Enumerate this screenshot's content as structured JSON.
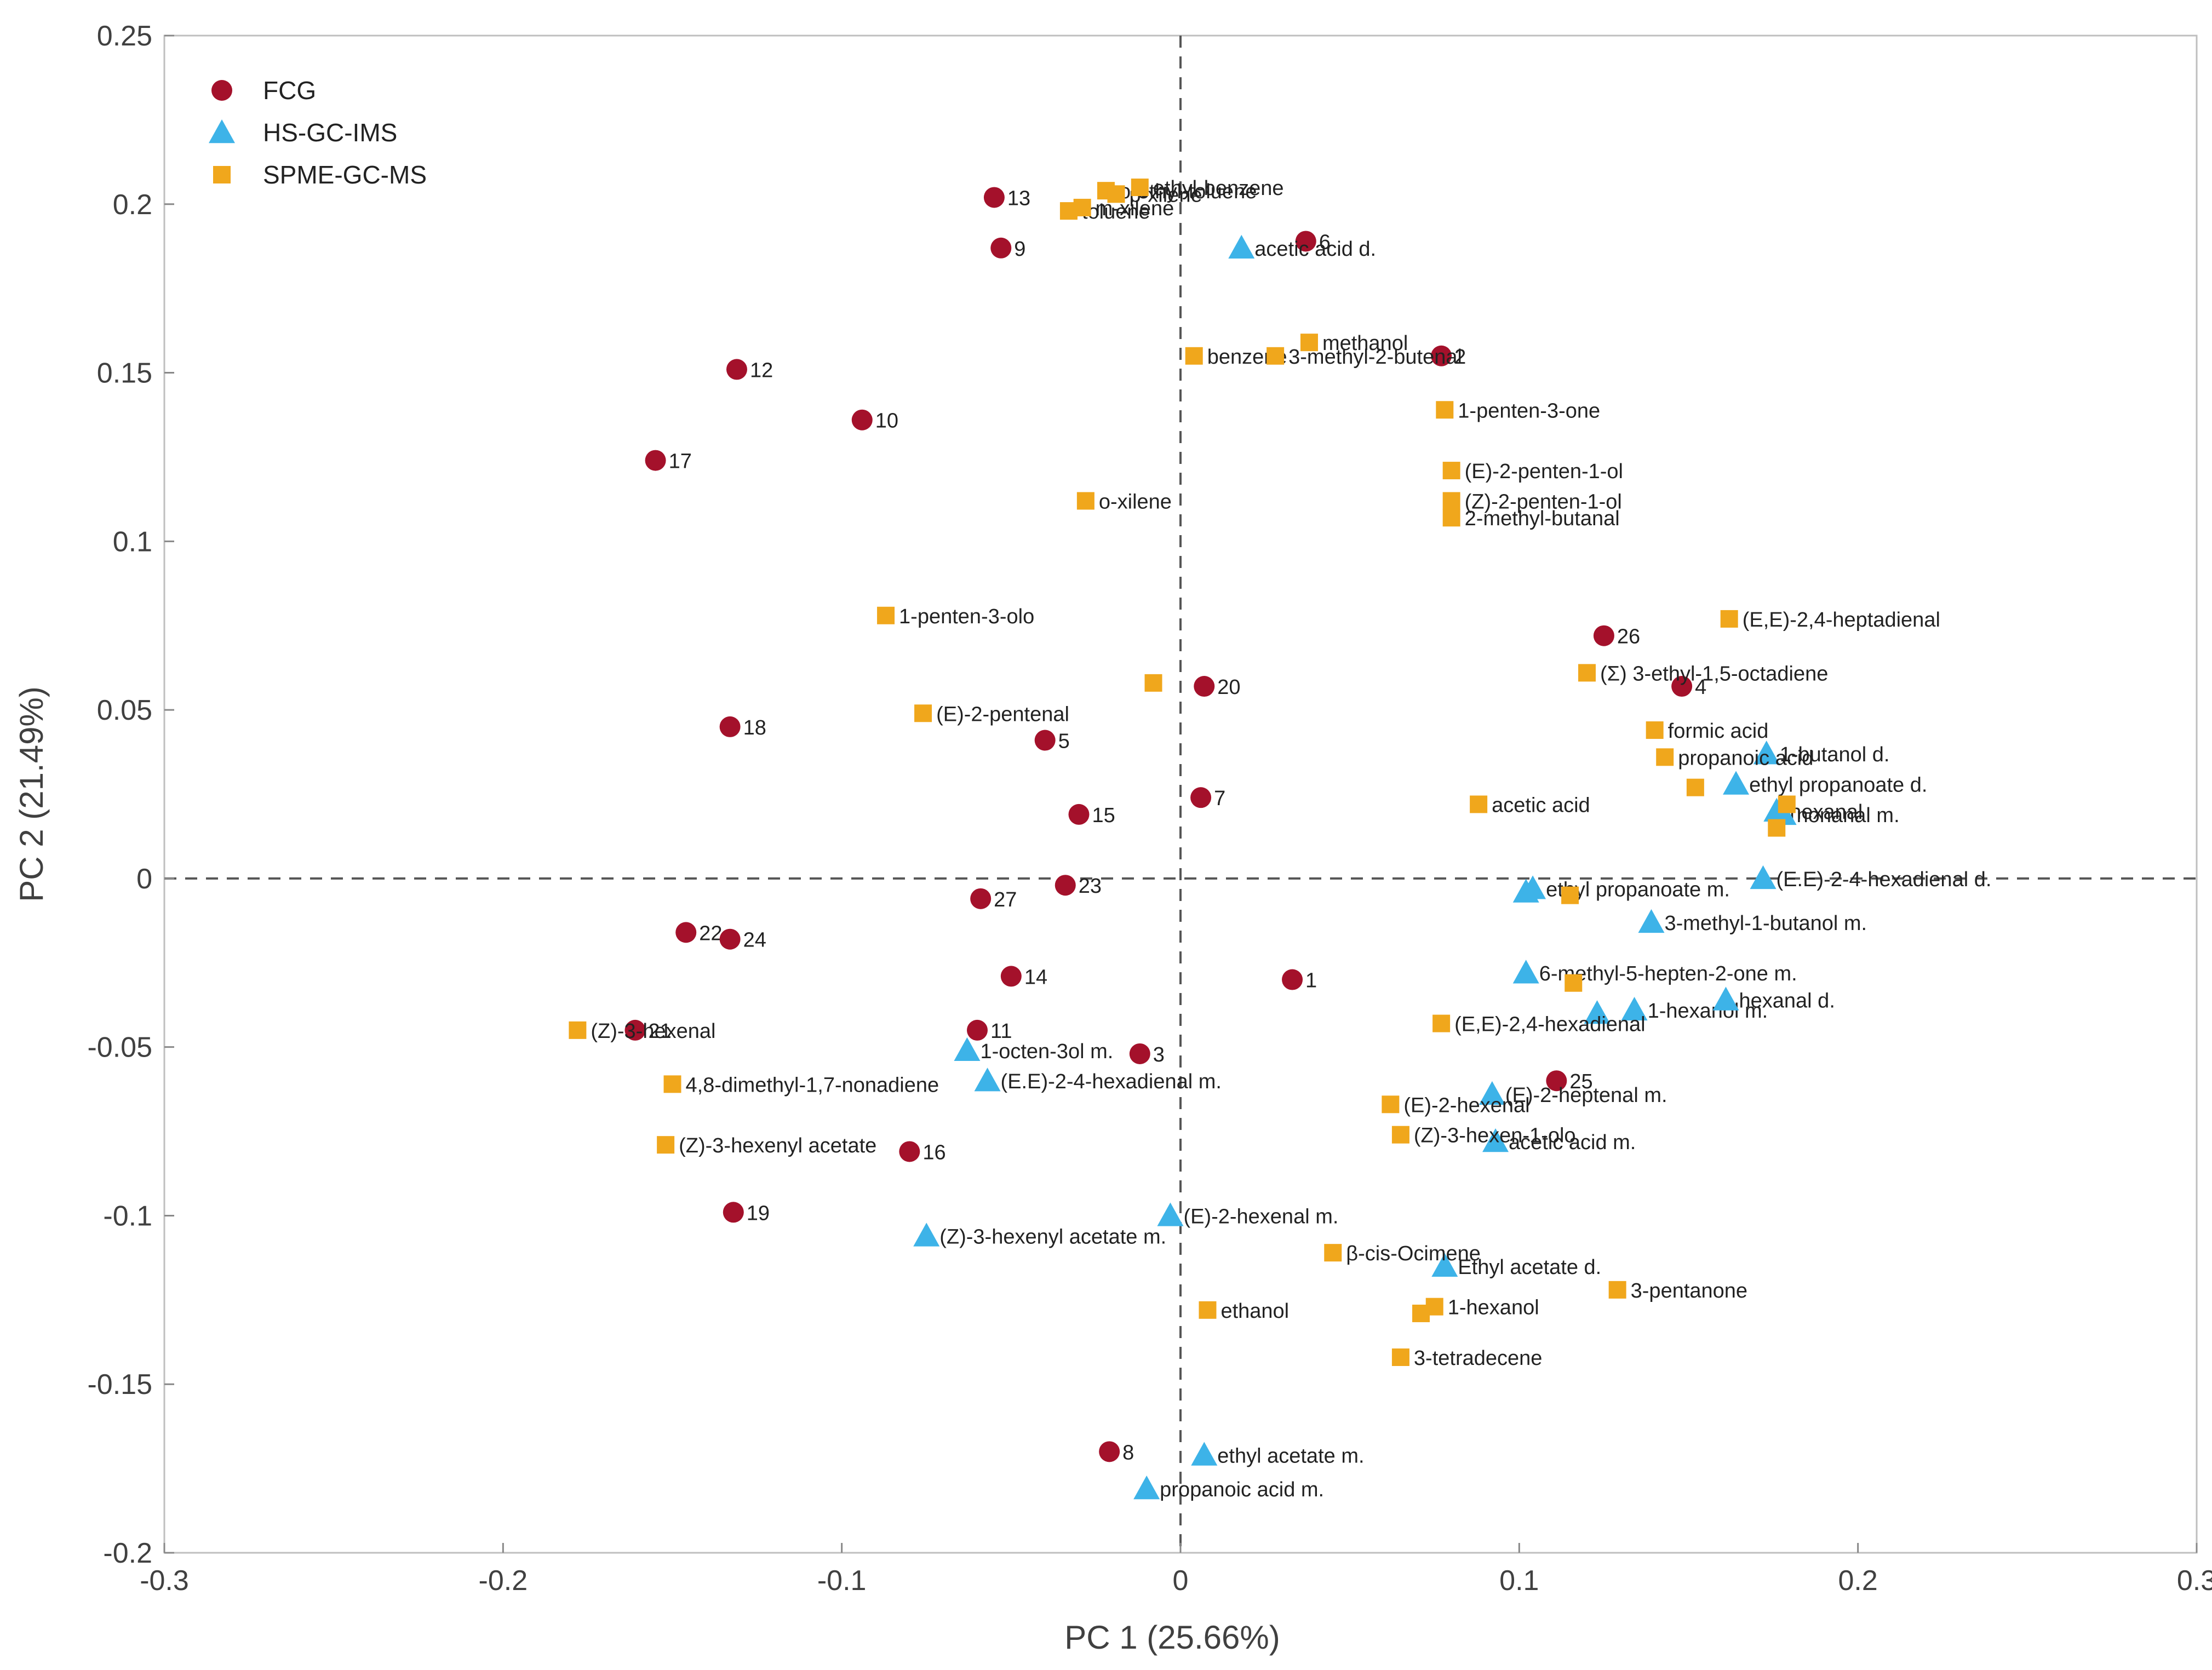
{
  "chart_data": {
    "type": "scatter",
    "xlabel": "PC 1 (25.66%)",
    "ylabel": "PC 2 (21.49%)",
    "xlim": [
      -0.3,
      0.3
    ],
    "ylim": [
      -0.2,
      0.25
    ],
    "x_ticks": [
      -0.3,
      -0.2,
      -0.1,
      0,
      0.1,
      0.2,
      0.3
    ],
    "x_tick_labels": [
      "-0.3",
      "-0.2",
      "-0.1",
      "0",
      "0.1",
      "0.2",
      "0.3"
    ],
    "y_ticks": [
      -0.2,
      -0.15,
      -0.1,
      -0.05,
      0,
      0.05,
      0.1,
      0.15,
      0.2,
      0.25
    ],
    "y_tick_labels": [
      "-0.2",
      "-0.15",
      "-0.1",
      "-0.05",
      "0",
      "0.05",
      "0.1",
      "0.15",
      "0.2",
      "0.25"
    ],
    "reference_lines": {
      "x": 0,
      "y": 0,
      "style": "dashed"
    },
    "legend_position": "top-left",
    "series": [
      {
        "name": "FCG",
        "marker": "circle",
        "color": "#a4112b",
        "points": [
          {
            "x": 0.033,
            "y": -0.03,
            "label": "1"
          },
          {
            "x": 0.077,
            "y": 0.155,
            "label": "2"
          },
          {
            "x": -0.012,
            "y": -0.052,
            "label": "3"
          },
          {
            "x": 0.148,
            "y": 0.057,
            "label": "4"
          },
          {
            "x": -0.04,
            "y": 0.041,
            "label": "5"
          },
          {
            "x": 0.037,
            "y": 0.189,
            "label": "6"
          },
          {
            "x": 0.006,
            "y": 0.024,
            "label": "7"
          },
          {
            "x": -0.021,
            "y": -0.17,
            "label": "8"
          },
          {
            "x": -0.053,
            "y": 0.187,
            "label": "9"
          },
          {
            "x": -0.094,
            "y": 0.136,
            "label": "10"
          },
          {
            "x": -0.06,
            "y": -0.045,
            "label": "11"
          },
          {
            "x": -0.131,
            "y": 0.151,
            "label": "12"
          },
          {
            "x": -0.055,
            "y": 0.202,
            "label": "13"
          },
          {
            "x": -0.05,
            "y": -0.029,
            "label": "14"
          },
          {
            "x": -0.03,
            "y": 0.019,
            "label": "15"
          },
          {
            "x": -0.08,
            "y": -0.081,
            "label": "16"
          },
          {
            "x": -0.155,
            "y": 0.124,
            "label": "17"
          },
          {
            "x": -0.133,
            "y": 0.045,
            "label": "18"
          },
          {
            "x": -0.132,
            "y": -0.099,
            "label": "19"
          },
          {
            "x": 0.007,
            "y": 0.057,
            "label": "20"
          },
          {
            "x": -0.161,
            "y": -0.045,
            "label": "21"
          },
          {
            "x": -0.146,
            "y": -0.016,
            "label": "22"
          },
          {
            "x": -0.034,
            "y": -0.002,
            "label": "23"
          },
          {
            "x": -0.133,
            "y": -0.018,
            "label": "24"
          },
          {
            "x": 0.111,
            "y": -0.06,
            "label": "25"
          },
          {
            "x": 0.125,
            "y": 0.072,
            "label": "26"
          },
          {
            "x": -0.059,
            "y": -0.006,
            "label": "27"
          }
        ]
      },
      {
        "name": "HS-GC-IMS",
        "marker": "triangle",
        "color": "#3db3e8",
        "points": [
          {
            "x": 0.018,
            "y": 0.187,
            "label": "acetic acid d."
          },
          {
            "x": 0.173,
            "y": 0.037,
            "label": "1-butanol d."
          },
          {
            "x": 0.164,
            "y": 0.028,
            "label": "ethyl propanoate d."
          },
          {
            "x": 0.176,
            "y": 0.02,
            "label": "hexanal"
          },
          {
            "x": 0.178,
            "y": 0.019,
            "label": "nonanal m."
          },
          {
            "x": 0.172,
            "y": 0.0,
            "label": "(E.E)-2-4-hexadienal d."
          },
          {
            "x": 0.102,
            "y": -0.004,
            "label": ""
          },
          {
            "x": 0.104,
            "y": -0.003,
            "label": "ethyl propanoate m."
          },
          {
            "x": 0.139,
            "y": -0.013,
            "label": "3-methyl-1-butanol m."
          },
          {
            "x": 0.102,
            "y": -0.028,
            "label": "6-methyl-5-hepten-2-one m."
          },
          {
            "x": 0.123,
            "y": -0.04,
            "label": ""
          },
          {
            "x": 0.134,
            "y": -0.039,
            "label": "1-hexanol m."
          },
          {
            "x": 0.161,
            "y": -0.036,
            "label": "hexanal d."
          },
          {
            "x": 0.092,
            "y": -0.064,
            "label": "(E)-2-heptenal m."
          },
          {
            "x": 0.093,
            "y": -0.078,
            "label": "acetic acid m."
          },
          {
            "x": -0.063,
            "y": -0.051,
            "label": "1-octen-3ol m."
          },
          {
            "x": -0.057,
            "y": -0.06,
            "label": "(E.E)-2-4-hexadienal m."
          },
          {
            "x": -0.003,
            "y": -0.1,
            "label": "(E)-2-hexenal m."
          },
          {
            "x": -0.075,
            "y": -0.106,
            "label": "(Z)-3-hexenyl acetate m."
          },
          {
            "x": 0.078,
            "y": -0.115,
            "label": "Ethyl acetate d."
          },
          {
            "x": 0.007,
            "y": -0.171,
            "label": "ethyl acetate m."
          },
          {
            "x": -0.01,
            "y": -0.181,
            "label": "propanoic acid m."
          }
        ]
      },
      {
        "name": "SPME-GC-MS",
        "marker": "square",
        "color": "#f0a71c",
        "points": [
          {
            "x": -0.022,
            "y": 0.204,
            "label": "o-ethyl-toluene"
          },
          {
            "x": -0.019,
            "y": 0.203,
            "label": "p-xilene"
          },
          {
            "x": -0.012,
            "y": 0.205,
            "label": "ethyl-benzene"
          },
          {
            "x": -0.033,
            "y": 0.198,
            "label": "toluene"
          },
          {
            "x": -0.029,
            "y": 0.199,
            "label": "m-xilene"
          },
          {
            "x": 0.004,
            "y": 0.155,
            "label": "benzene"
          },
          {
            "x": 0.028,
            "y": 0.155,
            "label": "3-methyl-2-butenal"
          },
          {
            "x": 0.038,
            "y": 0.159,
            "label": "methanol"
          },
          {
            "x": 0.078,
            "y": 0.139,
            "label": "1-penten-3-one"
          },
          {
            "x": 0.08,
            "y": 0.121,
            "label": "(E)-2-penten-1-ol"
          },
          {
            "x": 0.08,
            "y": 0.112,
            "label": "(Z)-2-penten-1-ol"
          },
          {
            "x": 0.08,
            "y": 0.107,
            "label": "2-methyl-butanal"
          },
          {
            "x": -0.028,
            "y": 0.112,
            "label": "o-xilene"
          },
          {
            "x": -0.087,
            "y": 0.078,
            "label": "1-penten-3-olo"
          },
          {
            "x": 0.162,
            "y": 0.077,
            "label": "(E,E)-2,4-heptadienal"
          },
          {
            "x": 0.12,
            "y": 0.061,
            "label": "(Σ) 3-ethyl-1,5-octadiene"
          },
          {
            "x": -0.008,
            "y": 0.058,
            "label": ""
          },
          {
            "x": -0.076,
            "y": 0.049,
            "label": "(E)-2-pentenal"
          },
          {
            "x": 0.14,
            "y": 0.044,
            "label": "formic acid"
          },
          {
            "x": 0.143,
            "y": 0.036,
            "label": "propanoic acid"
          },
          {
            "x": 0.152,
            "y": 0.027,
            "label": ""
          },
          {
            "x": 0.179,
            "y": 0.022,
            "label": ""
          },
          {
            "x": 0.176,
            "y": 0.015,
            "label": ""
          },
          {
            "x": 0.088,
            "y": 0.022,
            "label": "acetic acid"
          },
          {
            "x": 0.115,
            "y": -0.005,
            "label": ""
          },
          {
            "x": 0.116,
            "y": -0.031,
            "label": ""
          },
          {
            "x": 0.077,
            "y": -0.043,
            "label": "(E,E)-2,4-hexadienal"
          },
          {
            "x": 0.062,
            "y": -0.067,
            "label": "(E)-2-hexenal"
          },
          {
            "x": 0.065,
            "y": -0.076,
            "label": "(Z)-3-hexen-1-olo"
          },
          {
            "x": -0.178,
            "y": -0.045,
            "label": "(Z)-3-hexenal"
          },
          {
            "x": -0.15,
            "y": -0.061,
            "label": "4,8-dimethyl-1,7-nonadiene"
          },
          {
            "x": -0.152,
            "y": -0.079,
            "label": "(Z)-3-hexenyl acetate"
          },
          {
            "x": 0.045,
            "y": -0.111,
            "label": "β-cis-Ocimene"
          },
          {
            "x": 0.129,
            "y": -0.122,
            "label": "3-pentanone"
          },
          {
            "x": 0.075,
            "y": -0.127,
            "label": "1-hexanol"
          },
          {
            "x": 0.071,
            "y": -0.129,
            "label": ""
          },
          {
            "x": 0.008,
            "y": -0.128,
            "label": "ethanol"
          },
          {
            "x": 0.065,
            "y": -0.142,
            "label": "3-tetradecene"
          }
        ]
      }
    ]
  }
}
